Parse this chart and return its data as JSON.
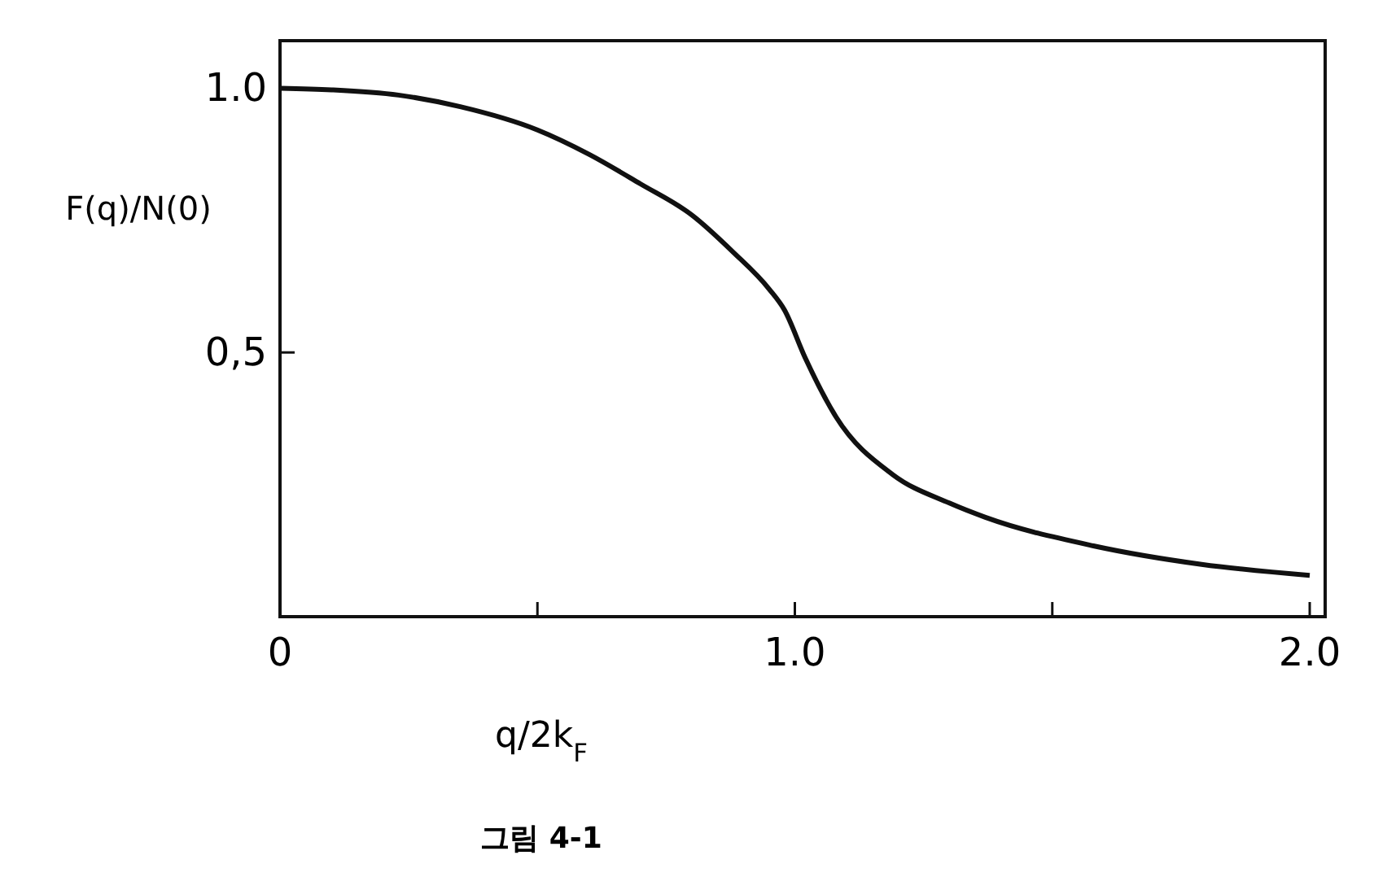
{
  "chart_data": {
    "type": "line",
    "ylabel": "F(q)/N(0)",
    "xlabel": "q/2k$_{F}$",
    "annotations": [
      "그림 4-1"
    ],
    "xlim": [
      0,
      2.03
    ],
    "ylim": [
      0,
      1.09
    ],
    "xticks": [
      0,
      {
        "value": 0.5,
        "label": null
      },
      {
        "value": 1,
        "label": "1.0"
      },
      {
        "value": 1.5,
        "label": null
      },
      {
        "value": 2,
        "label": "2.0"
      }
    ],
    "yticks": [
      {
        "value": 0.5,
        "label": "0,5"
      },
      {
        "value": 1,
        "label": "1.0"
      }
    ],
    "x": [
      0,
      0.1,
      0.23,
      0.35,
      0.5,
      0.6,
      0.7,
      0.8,
      0.88,
      0.95,
      0.98,
      1.02,
      1.08,
      1.19,
      1.3,
      1.37,
      1.58,
      1.79,
      2.0
    ],
    "series": [
      {
        "color": "#111111",
        "values": [
          1.0,
          0.997,
          0.987,
          0.965,
          0.921,
          0.875,
          0.819,
          0.76,
          0.69,
          0.62,
          0.58,
          0.49,
          0.378,
          0.269,
          0.215,
          0.188,
          0.134,
          0.099,
          0.078
        ]
      }
    ],
    "grid": false,
    "marker": "none",
    "line_style": "solid"
  }
}
